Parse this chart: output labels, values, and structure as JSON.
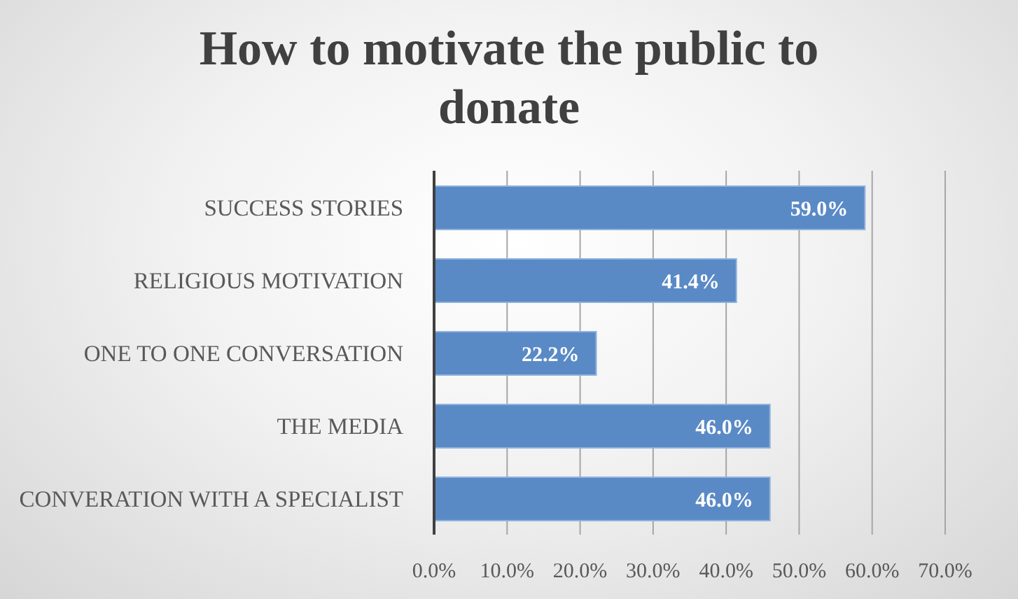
{
  "chart_data": {
    "type": "bar",
    "title": "How to motivate the public to donate",
    "orientation": "horizontal",
    "categories": [
      "SUCCESS STORIES",
      "RELIGIOUS MOTIVATION",
      "ONE TO ONE CONVERSATION",
      "THE MEDIA",
      "CONVERATION WITH A SPECIALIST"
    ],
    "values": [
      59.0,
      41.4,
      22.2,
      46.0,
      46.0
    ],
    "color": "#5a8ac6",
    "value_labels": [
      "59.0%",
      "41.4%",
      "22.2%",
      "46.0%",
      "46.0%"
    ],
    "xlim": [
      0,
      70
    ],
    "xticks": [
      {
        "value": 0,
        "label": "0.0%"
      },
      {
        "value": 10,
        "label": "10.0%"
      },
      {
        "value": 20,
        "label": "20.0%"
      },
      {
        "value": 30,
        "label": "30.0%"
      },
      {
        "value": 40,
        "label": "40.0%"
      },
      {
        "value": 50,
        "label": "50.0%"
      },
      {
        "value": 60,
        "label": "60.0%"
      },
      {
        "value": 70,
        "label": "70.0%"
      }
    ],
    "grid": "x"
  }
}
